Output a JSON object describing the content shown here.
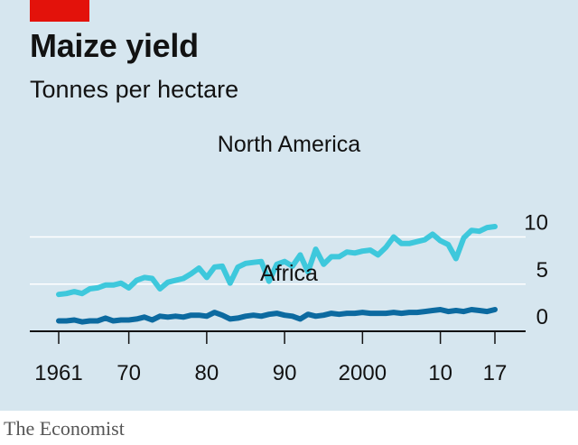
{
  "header": {
    "title": "Maize yield",
    "subtitle": "Tonnes per hectare"
  },
  "source": "The Economist",
  "colors": {
    "accent": "#e3120b",
    "background": "#d6e6ef",
    "north_america": "#3ec8dc",
    "africa": "#0c6aa0",
    "gridline": "#ffffff",
    "axis": "#121212"
  },
  "chart_data": {
    "type": "line",
    "title": "Maize yield",
    "subtitle": "Tonnes per hectare",
    "xlim": [
      1961,
      2017
    ],
    "ylim": [
      0,
      10
    ],
    "grid": true,
    "x_ticks": [
      1961,
      1970,
      1980,
      1990,
      2000,
      2010,
      2017
    ],
    "x_tick_labels": [
      "1961",
      "70",
      "80",
      "90",
      "2000",
      "10",
      "17"
    ],
    "y_ticks": [
      0,
      5,
      10
    ],
    "y_tick_labels": [
      "0",
      "5",
      "10"
    ],
    "x": [
      1961,
      1962,
      1963,
      1964,
      1965,
      1966,
      1967,
      1968,
      1969,
      1970,
      1971,
      1972,
      1973,
      1974,
      1975,
      1976,
      1977,
      1978,
      1979,
      1980,
      1981,
      1982,
      1983,
      1984,
      1985,
      1986,
      1987,
      1988,
      1989,
      1990,
      1991,
      1992,
      1993,
      1994,
      1995,
      1996,
      1997,
      1998,
      1999,
      2000,
      2001,
      2002,
      2003,
      2004,
      2005,
      2006,
      2007,
      2008,
      2009,
      2010,
      2011,
      2012,
      2013,
      2014,
      2015,
      2016,
      2017
    ],
    "series": [
      {
        "name": "North America",
        "values": [
          3.9,
          4.0,
          4.2,
          4.0,
          4.5,
          4.6,
          4.9,
          4.9,
          5.1,
          4.6,
          5.4,
          5.7,
          5.6,
          4.5,
          5.2,
          5.4,
          5.6,
          6.1,
          6.7,
          5.7,
          6.8,
          6.9,
          5.1,
          6.8,
          7.2,
          7.3,
          7.4,
          5.3,
          7.1,
          7.4,
          6.9,
          8.1,
          6.3,
          8.7,
          7.1,
          7.9,
          7.9,
          8.4,
          8.3,
          8.5,
          8.6,
          8.1,
          8.9,
          10.0,
          9.3,
          9.3,
          9.5,
          9.7,
          10.3,
          9.6,
          9.2,
          7.7,
          9.9,
          10.7,
          10.6,
          11.0,
          11.1
        ],
        "label": "North America"
      },
      {
        "name": "Africa",
        "values": [
          1.1,
          1.1,
          1.2,
          1.0,
          1.1,
          1.1,
          1.4,
          1.1,
          1.2,
          1.2,
          1.3,
          1.5,
          1.2,
          1.6,
          1.5,
          1.6,
          1.5,
          1.7,
          1.7,
          1.6,
          2.0,
          1.7,
          1.3,
          1.4,
          1.6,
          1.7,
          1.6,
          1.8,
          1.9,
          1.7,
          1.6,
          1.3,
          1.8,
          1.6,
          1.7,
          1.9,
          1.8,
          1.9,
          1.9,
          2.0,
          1.9,
          1.9,
          1.9,
          2.0,
          1.9,
          2.0,
          2.0,
          2.1,
          2.2,
          2.3,
          2.1,
          2.2,
          2.1,
          2.3,
          2.2,
          2.1,
          2.3
        ],
        "label": "Africa"
      }
    ]
  }
}
